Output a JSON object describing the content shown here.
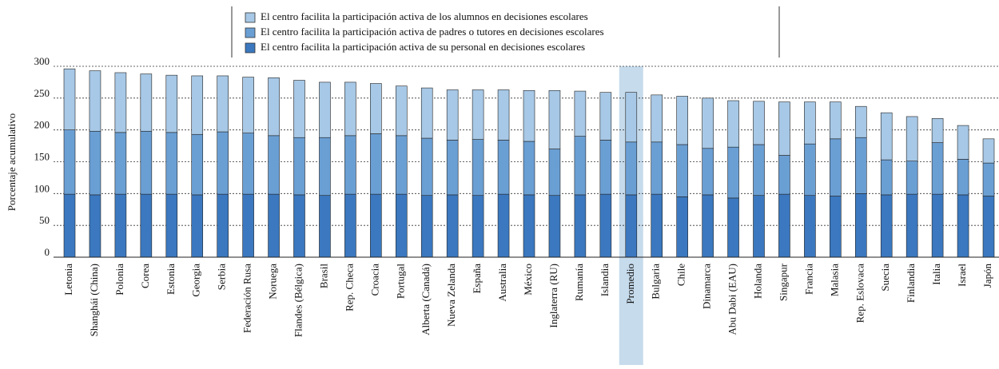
{
  "chart_data": {
    "type": "stacked_bar",
    "y_label": "Porcentaje acumulativo",
    "categories": [
      "Letonia",
      "Shanghái (China)",
      "Polonia",
      "Corea",
      "Estonia",
      "Georgia",
      "Serbia",
      "Federación Rusa",
      "Noruega",
      "Flandes (Bélgica)",
      "Brasil",
      "Rep. Checa",
      "Croacia",
      "Portugal",
      "Alberta (Canadá)",
      "Nueva Zelanda",
      "España",
      "Australia",
      "México",
      "Inglaterra (RU)",
      "Rumanía",
      "Islandia",
      "Promedio",
      "Bulgaria",
      "Chile",
      "Dinamarca",
      "Abu Dabi (EAU)",
      "Holanda",
      "Singapur",
      "Francia",
      "Malasia",
      "Rep. Eslovaca",
      "Suecia",
      "Finlandia",
      "Italia",
      "Israel",
      "Japón"
    ],
    "series": [
      {
        "name": "El centro facilita la participación activa de los alumnos en decisiones escolares",
        "color": "#a7c8e6",
        "values": [
          96,
          95,
          94,
          90,
          90,
          92,
          88,
          88,
          91,
          90,
          87,
          84,
          79,
          78,
          79,
          79,
          78,
          79,
          80,
          92,
          71,
          75,
          78,
          74,
          76,
          79,
          73,
          68,
          84,
          66,
          58,
          49,
          74,
          70,
          38,
          53,
          38
        ]
      },
      {
        "name": "El centro facilita la participación activa de padres o tutores en decisiones escolares",
        "color": "#6a9fd4",
        "values": [
          101,
          100,
          97,
          99,
          97,
          95,
          98,
          96,
          92,
          90,
          91,
          92,
          95,
          92,
          90,
          86,
          88,
          85,
          84,
          73,
          92,
          85,
          83,
          82,
          82,
          73,
          80,
          80,
          61,
          81,
          90,
          88,
          55,
          52,
          81,
          56,
          52
        ]
      },
      {
        "name": "El centro facilita la participación activa de su personal en decisiones escolares",
        "color": "#3b78bf",
        "values": [
          99,
          98,
          99,
          99,
          99,
          98,
          99,
          99,
          99,
          98,
          97,
          99,
          99,
          99,
          97,
          98,
          97,
          99,
          98,
          97,
          98,
          99,
          98,
          99,
          95,
          98,
          93,
          97,
          99,
          97,
          96,
          100,
          98,
          99,
          99,
          98,
          96
        ]
      }
    ],
    "ylim": [
      0,
      300
    ],
    "yticks": [
      0,
      50,
      100,
      150,
      200,
      250,
      300
    ],
    "grid": true,
    "highlight_index": 22,
    "highlight_color": "#c6dbec"
  }
}
